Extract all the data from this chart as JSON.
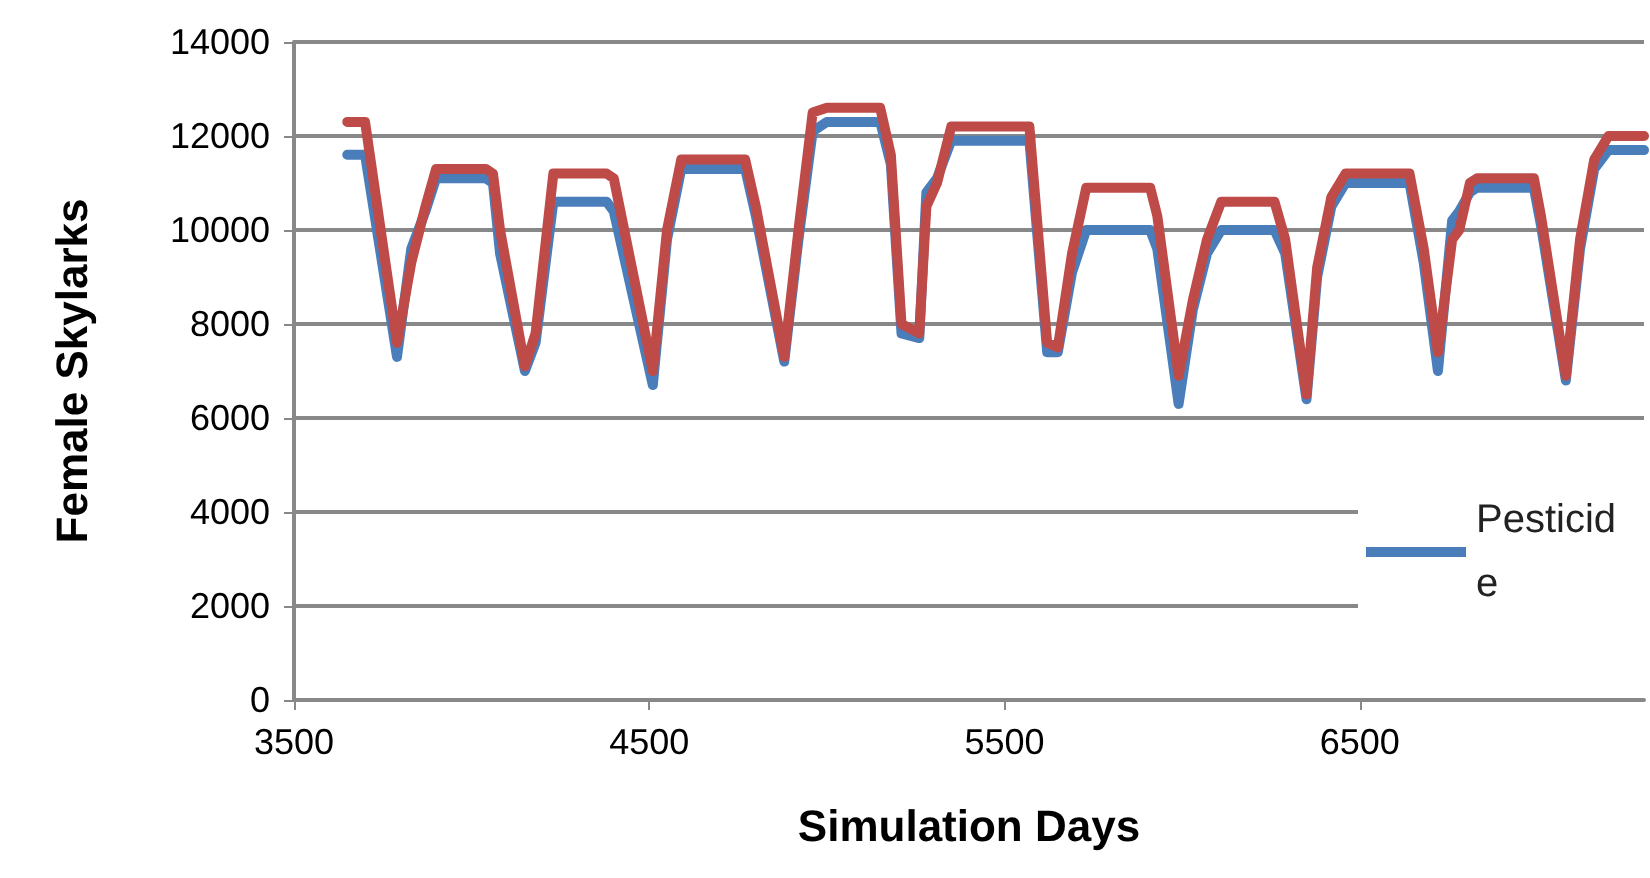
{
  "chart_data": {
    "type": "line",
    "xlabel": "Simulation Days",
    "ylabel": "Female Skylarks",
    "x": [
      3650,
      3700,
      3790,
      3830,
      3870,
      3900,
      4040,
      4060,
      4080,
      4150,
      4180,
      4230,
      4380,
      4400,
      4510,
      4550,
      4590,
      4770,
      4800,
      4880,
      4920,
      4960,
      5000,
      5150,
      5180,
      5210,
      5260,
      5280,
      5310,
      5350,
      5570,
      5620,
      5650,
      5690,
      5730,
      5910,
      5930,
      5990,
      6030,
      6070,
      6110,
      6260,
      6290,
      6350,
      6380,
      6420,
      6460,
      6640,
      6680,
      6720,
      6760,
      6780,
      6810,
      6830,
      6990,
      7010,
      7080,
      7120,
      7160,
      7200,
      7300
    ],
    "series": [
      {
        "name": "Pesticide",
        "color": "#4a7ebb",
        "values": [
          11600,
          11600,
          7300,
          9600,
          10400,
          11100,
          11100,
          11000,
          9500,
          7000,
          7600,
          10600,
          10600,
          10400,
          6700,
          9800,
          11300,
          11300,
          10300,
          7200,
          9800,
          12100,
          12300,
          12300,
          11400,
          7800,
          7700,
          10800,
          11100,
          11900,
          11900,
          7400,
          7400,
          9100,
          10000,
          10000,
          9600,
          6300,
          8300,
          9500,
          10000,
          10000,
          9500,
          6400,
          9000,
          10500,
          11000,
          11000,
          9300,
          7000,
          10200,
          10400,
          10800,
          10900,
          10900,
          10100,
          6800,
          9600,
          11300,
          11700,
          11700
        ]
      },
      {
        "color": "#be4b48",
        "values": [
          12300,
          12300,
          7600,
          9300,
          10500,
          11300,
          11300,
          11200,
          10000,
          7100,
          7800,
          11200,
          11200,
          11100,
          7000,
          10000,
          11500,
          11500,
          10500,
          7300,
          10000,
          12500,
          12600,
          12600,
          11600,
          8000,
          7800,
          10500,
          11000,
          12200,
          12200,
          7600,
          7500,
          9500,
          10900,
          10900,
          10300,
          6900,
          8500,
          9800,
          10600,
          10600,
          9800,
          6500,
          9200,
          10700,
          11200,
          11200,
          9600,
          7400,
          9800,
          10000,
          11000,
          11100,
          11100,
          10300,
          6900,
          9800,
          11500,
          12000,
          12000
        ]
      }
    ],
    "xlim": [
      3500,
      7300
    ],
    "xticks": [
      3500,
      4500,
      5500,
      6500
    ],
    "ylim": [
      0,
      14000
    ],
    "yticks": [
      0,
      2000,
      4000,
      6000,
      8000,
      10000,
      12000,
      14000
    ],
    "grid": "y",
    "legend": "right",
    "marker": "none",
    "line_style": "solid"
  }
}
